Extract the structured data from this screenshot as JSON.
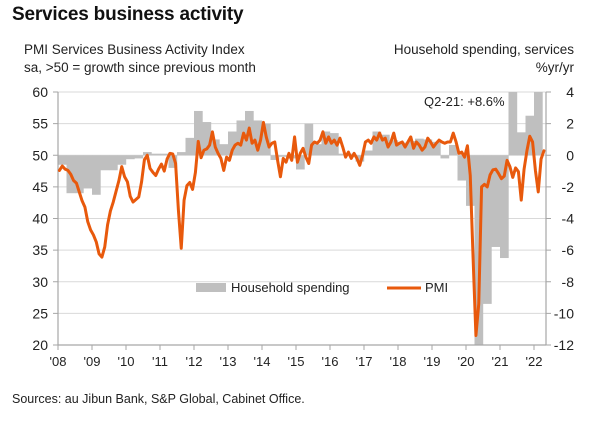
{
  "title": "Services business activity",
  "left_axis_title": [
    "PMI Services Business Activity Index",
    "sa, >50 = growth since previous month"
  ],
  "right_axis_title": [
    "Household spending, services",
    "%yr/yr"
  ],
  "source": "Sources: au Jibun Bank, S&P Global, Cabinet Office.",
  "colors": {
    "pmi": "#e8590c",
    "household": "#bfbfbf",
    "grid": "#d9d9d9",
    "axis": "#a6a6a6"
  },
  "chart_data": {
    "type": "bar+line",
    "title": "Services business activity",
    "annotation": "Q2-21: +8.6%",
    "legend": [
      "Household spending",
      "PMI"
    ],
    "legend_placement": "center",
    "grid": true,
    "x_ticks": [
      "'08",
      "'09",
      "'10",
      "'11",
      "'12",
      "'13",
      "'14",
      "'15",
      "'16",
      "'17",
      "'18",
      "'19",
      "'20",
      "'21",
      "'22"
    ],
    "left_axis": {
      "label": "PMI Services Business Activity Index, sa, >50 = growth since previous month",
      "ylim": [
        20,
        60
      ],
      "ticks": [
        20,
        25,
        30,
        35,
        40,
        45,
        50,
        55,
        60
      ]
    },
    "right_axis": {
      "label": "Household spending, services, %yr/yr",
      "ylim": [
        -12,
        4
      ],
      "ticks": [
        -12,
        -10,
        -8,
        -6,
        -4,
        -2,
        0,
        2,
        4
      ]
    },
    "series": [
      {
        "name": "Household spending",
        "type": "bar",
        "axis": "right",
        "frequency": "quarterly",
        "start": "2008-Q1",
        "values": [
          -0.6,
          -2.4,
          -2.4,
          -2.1,
          -2.5,
          -0.95,
          -0.95,
          -0.6,
          -0.25,
          -0.2,
          0.2,
          0.1,
          0.1,
          -0.8,
          0.2,
          1.1,
          2.8,
          2.1,
          1.0,
          0.7,
          1.5,
          2.2,
          2.8,
          2.2,
          2.0,
          -0.3,
          -0.1,
          -0.2,
          -0.9,
          2.0,
          0.7,
          1.5,
          1.4,
          0.1,
          0.1,
          -0.4,
          0.3,
          1.5,
          1.3,
          0.95,
          0.8,
          0.9,
          1.05,
          1.0,
          0.85,
          -0.2,
          0.65,
          -1.6,
          -3.2,
          -12.2,
          -9.4,
          -5.8,
          -6.5,
          8.6,
          1.45,
          2.5,
          4.5
        ]
      },
      {
        "name": "PMI",
        "type": "line",
        "axis": "left",
        "frequency": "monthly",
        "start": "2008-01",
        "values": [
          47.6,
          48.3,
          47.8,
          47.6,
          47.0,
          46.0,
          45.6,
          44.2,
          42.8,
          41.8,
          39.5,
          38.2,
          37.4,
          36.3,
          34.4,
          33.9,
          35.5,
          39.0,
          41.2,
          42.6,
          44.3,
          46.0,
          48.2,
          46.6,
          45.8,
          43.5,
          42.6,
          43.0,
          43.4,
          45.8,
          49.3,
          50.0,
          47.9,
          47.3,
          46.8,
          47.8,
          48.6,
          47.5,
          49.4,
          50.3,
          50.2,
          48.7,
          41.3,
          35.3,
          42.9,
          45.2,
          45.7,
          44.6,
          47.3,
          52.2,
          49.6,
          50.8,
          51.0,
          51.6,
          53.7,
          51.3,
          50.3,
          49.5,
          47.6,
          49.7,
          49.2,
          50.8,
          51.6,
          51.9,
          51.6,
          53.5,
          52.4,
          54.3,
          51.9,
          52.4,
          50.8,
          52.4,
          55.2,
          52.9,
          51.3,
          51.9,
          52.1,
          49.2,
          46.6,
          49.5,
          48.9,
          50.3,
          49.2,
          52.9,
          48.9,
          50.3,
          51.1,
          49.7,
          48.7,
          51.6,
          52.1,
          51.9,
          52.4,
          53.7,
          51.9,
          52.9,
          51.9,
          52.4,
          51.6,
          52.7,
          51.3,
          49.7,
          50.5,
          49.5,
          50.3,
          49.5,
          48.4,
          50.0,
          52.1,
          52.4,
          51.9,
          52.9,
          52.4,
          53.5,
          52.4,
          52.7,
          51.3,
          52.1,
          53.5,
          51.6,
          51.9,
          52.1,
          51.3,
          52.1,
          52.9,
          51.1,
          52.1,
          51.6,
          50.8,
          51.3,
          52.7,
          52.1,
          51.3,
          51.9,
          52.4,
          52.1,
          51.9,
          52.1,
          52.1,
          53.5,
          52.1,
          50.3,
          50.5,
          49.7,
          51.5,
          46.8,
          33.8,
          21.5,
          26.5,
          45.0,
          45.4,
          45.0,
          46.9,
          47.7,
          47.8,
          47.1,
          46.3,
          46.7,
          49.2,
          48.2,
          46.5,
          48.0,
          47.4,
          42.9,
          47.8,
          50.7,
          53.0,
          52.1,
          47.6,
          44.2,
          49.4,
          50.7,
          52.1,
          54.0
        ]
      }
    ]
  }
}
